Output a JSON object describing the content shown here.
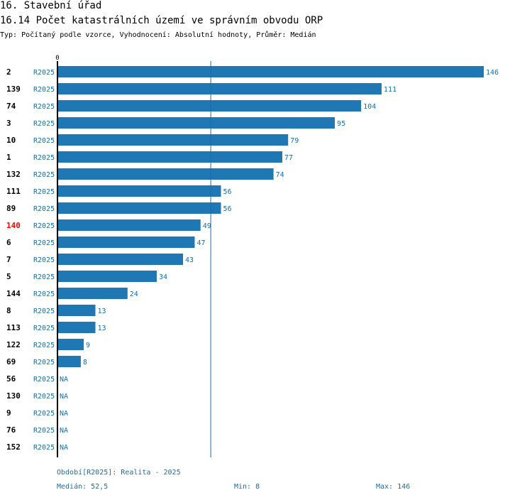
{
  "header": {
    "section": "16. Stavební úřad",
    "title": "16.14 Počet katastrálních území ve správním obvodu ORP",
    "subtitle": "Typ: Počítaný podle vzorce, Vyhodnocení: Absolutní hodnoty, Průměr: Medián"
  },
  "colors": {
    "bar": "#1f77b4",
    "highlight_label": "#ff0000",
    "value_text": "#1a6ea8",
    "axis": "#000000",
    "median_line": "#1a6ea8"
  },
  "chart_data": {
    "type": "bar",
    "orientation": "horizontal",
    "title": "16.14 Počet katastrálních území ve správním obvodu ORP",
    "axis_start_label": "0",
    "xlim": [
      0,
      146
    ],
    "median": 52.5,
    "period_label": "R2025",
    "na_label": "NA",
    "highlight_category": "140",
    "rows": [
      {
        "id": "2",
        "value": 146
      },
      {
        "id": "139",
        "value": 111
      },
      {
        "id": "74",
        "value": 104
      },
      {
        "id": "3",
        "value": 95
      },
      {
        "id": "10",
        "value": 79
      },
      {
        "id": "1",
        "value": 77
      },
      {
        "id": "132",
        "value": 74
      },
      {
        "id": "111",
        "value": 56
      },
      {
        "id": "89",
        "value": 56
      },
      {
        "id": "140",
        "value": 49
      },
      {
        "id": "6",
        "value": 47
      },
      {
        "id": "7",
        "value": 43
      },
      {
        "id": "5",
        "value": 34
      },
      {
        "id": "144",
        "value": 24
      },
      {
        "id": "8",
        "value": 13
      },
      {
        "id": "113",
        "value": 13
      },
      {
        "id": "122",
        "value": 9
      },
      {
        "id": "69",
        "value": 8
      },
      {
        "id": "56",
        "value": null
      },
      {
        "id": "130",
        "value": null
      },
      {
        "id": "9",
        "value": null
      },
      {
        "id": "76",
        "value": null
      },
      {
        "id": "152",
        "value": null
      }
    ]
  },
  "footer": {
    "period": "Období[R2025]: Realita - 2025",
    "median": "Medián: 52,5",
    "min": "Min: 8",
    "max": "Max: 146"
  }
}
